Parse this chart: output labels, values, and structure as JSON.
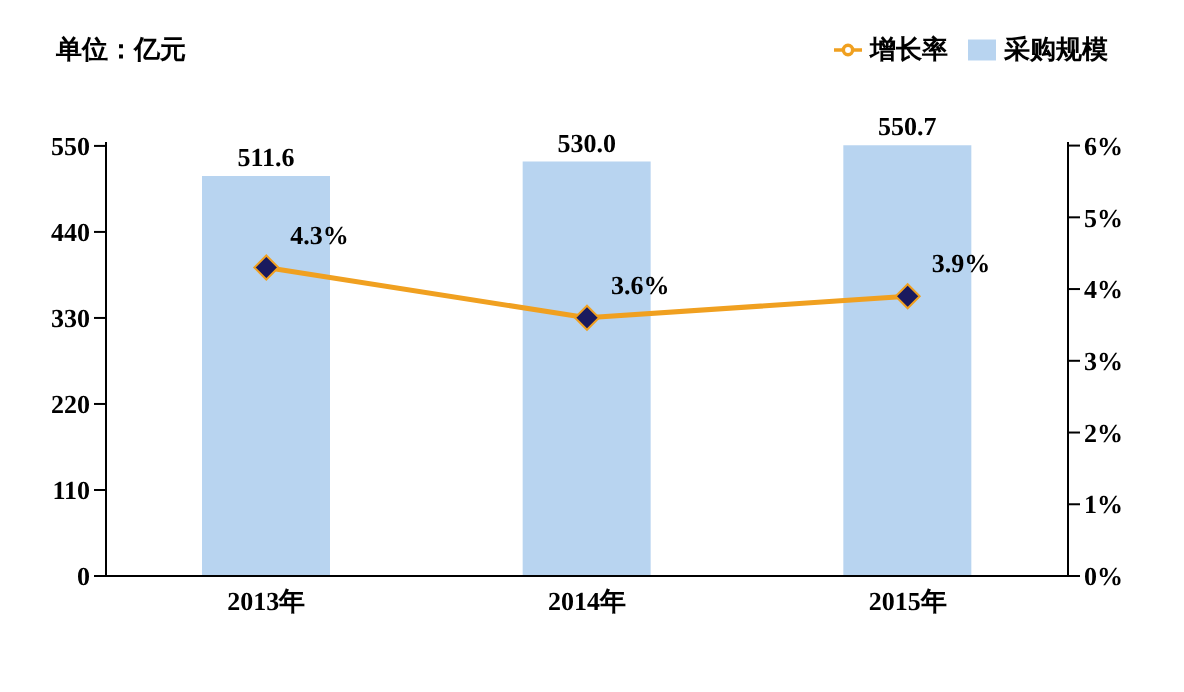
{
  "chart_data": {
    "type": "bar",
    "categories": [
      "2013年",
      "2014年",
      "2015年"
    ],
    "series": [
      {
        "name": "采购规模",
        "color": "#b8d4f0",
        "values": [
          511.6,
          530.0,
          550.7
        ],
        "value_labels": [
          "511.6",
          "530.0",
          "550.7"
        ]
      },
      {
        "name": "增长率",
        "type": "line",
        "axis": "y2",
        "color": "#f0a020",
        "values": [
          4.3,
          3.6,
          3.9
        ],
        "value_labels": [
          "4.3%",
          "3.6%",
          "3.9%"
        ]
      }
    ],
    "ylim": [
      0,
      555
    ],
    "yticks": [
      0,
      110,
      220,
      330,
      440,
      550
    ],
    "y2lim": [
      0,
      6.05
    ],
    "y2ticks": [
      {
        "value": 0,
        "label": "0%"
      },
      {
        "value": 1,
        "label": "1%"
      },
      {
        "value": 2,
        "label": "2%"
      },
      {
        "value": 3,
        "label": "3%"
      },
      {
        "value": 4,
        "label": "4%"
      },
      {
        "value": 5,
        "label": "5%"
      },
      {
        "value": 6,
        "label": "6%"
      }
    ],
    "annotations": [
      "单位：亿元"
    ],
    "legend": "top right",
    "marker": "diamond",
    "grid": false
  }
}
